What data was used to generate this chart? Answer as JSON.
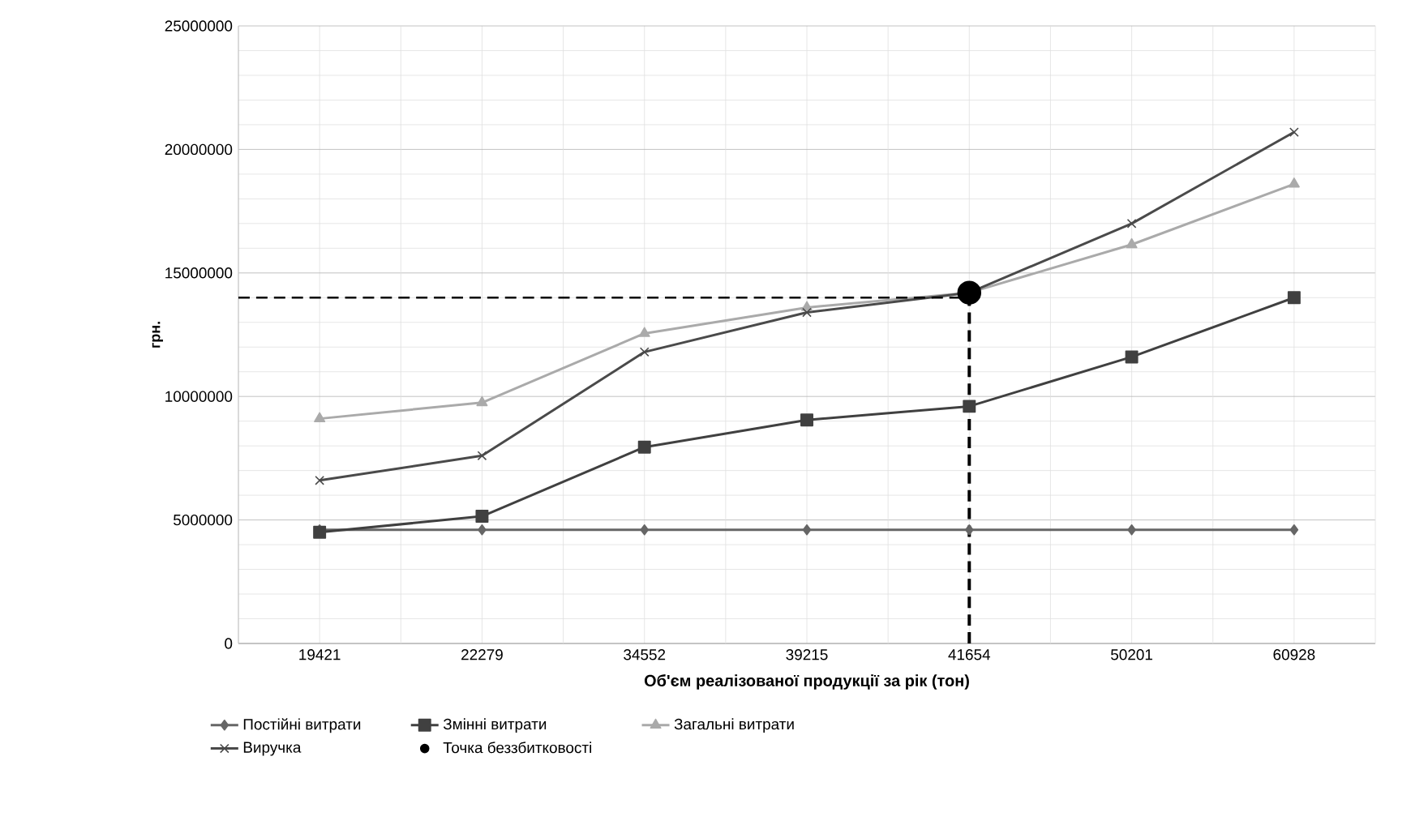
{
  "chart_data": {
    "type": "line",
    "xlabel": "Об'єм реалізованої продукції за рік (тон)",
    "ylabel": "грн.",
    "categories": [
      "19421",
      "22279",
      "34552",
      "39215",
      "41654",
      "50201",
      "60928"
    ],
    "series": [
      {
        "name": "Постійні витрати",
        "color": "#666666",
        "marker": "diamond",
        "values": [
          4600000,
          4600000,
          4600000,
          4600000,
          4600000,
          4600000,
          4600000
        ]
      },
      {
        "name": "Змінні витрати",
        "color": "#404040",
        "marker": "square",
        "values": [
          4500000,
          5150000,
          7950000,
          9050000,
          9600000,
          11600000,
          14000000
        ]
      },
      {
        "name": "Загальні витрати",
        "color": "#aaaaaa",
        "marker": "triangle",
        "values": [
          9100000,
          9750000,
          12550000,
          13600000,
          14200000,
          16150000,
          18600000
        ]
      },
      {
        "name": "Виручка",
        "color": "#4a4a4a",
        "marker": "cross",
        "values": [
          6600000,
          7600000,
          11800000,
          13400000,
          14200000,
          17000000,
          20700000
        ]
      },
      {
        "name": "Точка беззбитковості",
        "type": "scatter",
        "color": "#000000",
        "marker": "circle",
        "values": [
          null,
          null,
          null,
          null,
          14200000,
          null,
          null
        ]
      }
    ],
    "ylim": [
      0,
      25000000
    ],
    "yticks": [
      0,
      5000000,
      10000000,
      15000000,
      20000000,
      25000000
    ],
    "grid": true,
    "legend": "bottom",
    "ref_lines": [
      {
        "axis": "y",
        "value": 14000000,
        "color": "#000000",
        "line_style": "dashed"
      }
    ]
  }
}
